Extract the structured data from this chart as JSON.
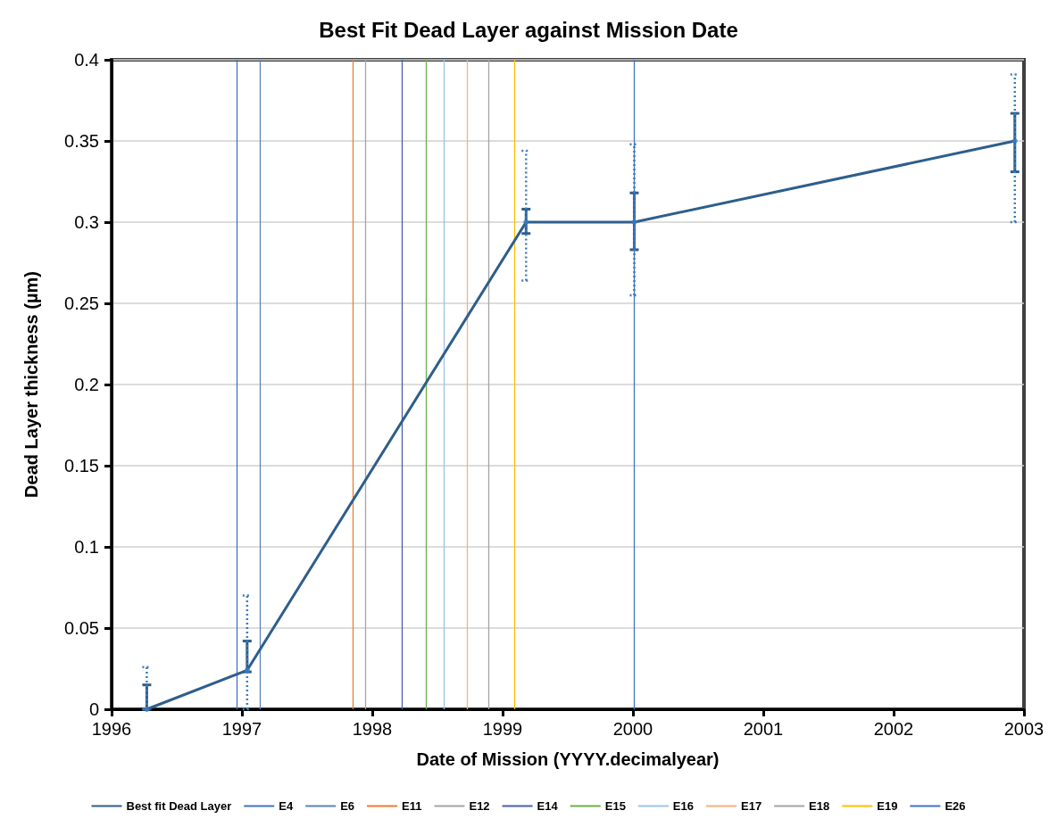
{
  "chart_data": {
    "type": "line",
    "title": "Best Fit Dead Layer against Mission Date",
    "xlabel": "Date of Mission (YYYY.decimalyear)",
    "ylabel": "Dead Layer thickness (µm)",
    "series": [
      {
        "name": "Best fit Dead Layer",
        "color": "#2e5e8c",
        "x": [
          1996.27,
          1997.04,
          1999.18,
          2000.01,
          2002.93
        ],
        "values": [
          0,
          0.024,
          0.3,
          0.3,
          0.35
        ],
        "errors": [
          [
            0,
            0.015
          ],
          [
            0.023,
            0.042
          ],
          [
            0.293,
            0.308
          ],
          [
            0.283,
            0.318
          ],
          [
            0.331,
            0.367
          ]
        ]
      },
      {
        "type": "scatter",
        "color": "#3a7dc0",
        "marker": "circle",
        "line_style": "dotted",
        "x": [
          1996.27,
          1997.04,
          1999.18,
          2000.01,
          2002.93
        ],
        "values": [
          0,
          0.024,
          0.3,
          0.3,
          0.35
        ],
        "errors": [
          [
            0,
            0.026
          ],
          [
            0,
            0.07
          ],
          [
            0.264,
            0.344
          ],
          [
            0.255,
            0.348
          ],
          [
            0.3,
            0.391
          ]
        ]
      }
    ],
    "ref_lines": [
      {
        "axis": "x",
        "value": 1996.96,
        "label": "E4",
        "color": "#4472c4"
      },
      {
        "axis": "x",
        "value": 1997.14,
        "label": "E6",
        "color": "#5b83b8"
      },
      {
        "axis": "x",
        "value": 1997.85,
        "label": "E11",
        "color": "#ed7d31"
      },
      {
        "axis": "x",
        "value": 1997.95,
        "label": "E12",
        "color": "#a5a5a5"
      },
      {
        "axis": "x",
        "value": 1998.23,
        "label": "E14",
        "color": "#4a5fa8"
      },
      {
        "axis": "x",
        "value": 1998.41,
        "label": "E15",
        "color": "#70ad47"
      },
      {
        "axis": "x",
        "value": 1998.55,
        "label": "E16",
        "color": "#9dc3e6"
      },
      {
        "axis": "x",
        "value": 1998.73,
        "label": "E17",
        "color": "#f4b183"
      },
      {
        "axis": "x",
        "value": 1998.89,
        "label": "E18",
        "color": "#a5a5a5"
      },
      {
        "axis": "x",
        "value": 1999.09,
        "label": "E19",
        "color": "#ffc000"
      },
      {
        "axis": "x",
        "value": 2000.01,
        "label": "E26",
        "color": "#4472c4"
      }
    ],
    "xlim": [
      1996,
      2003
    ],
    "xticks": [
      1996,
      1997,
      1998,
      1999,
      2000,
      2001,
      2002,
      2003
    ],
    "ylim": [
      0,
      0.4
    ],
    "yticks": [
      0,
      0.05,
      0.1,
      0.15,
      0.2,
      0.25,
      0.3,
      0.35,
      0.4
    ],
    "grid": "y",
    "legend": "bottom",
    "marker": "none",
    "line_style": "solid"
  }
}
